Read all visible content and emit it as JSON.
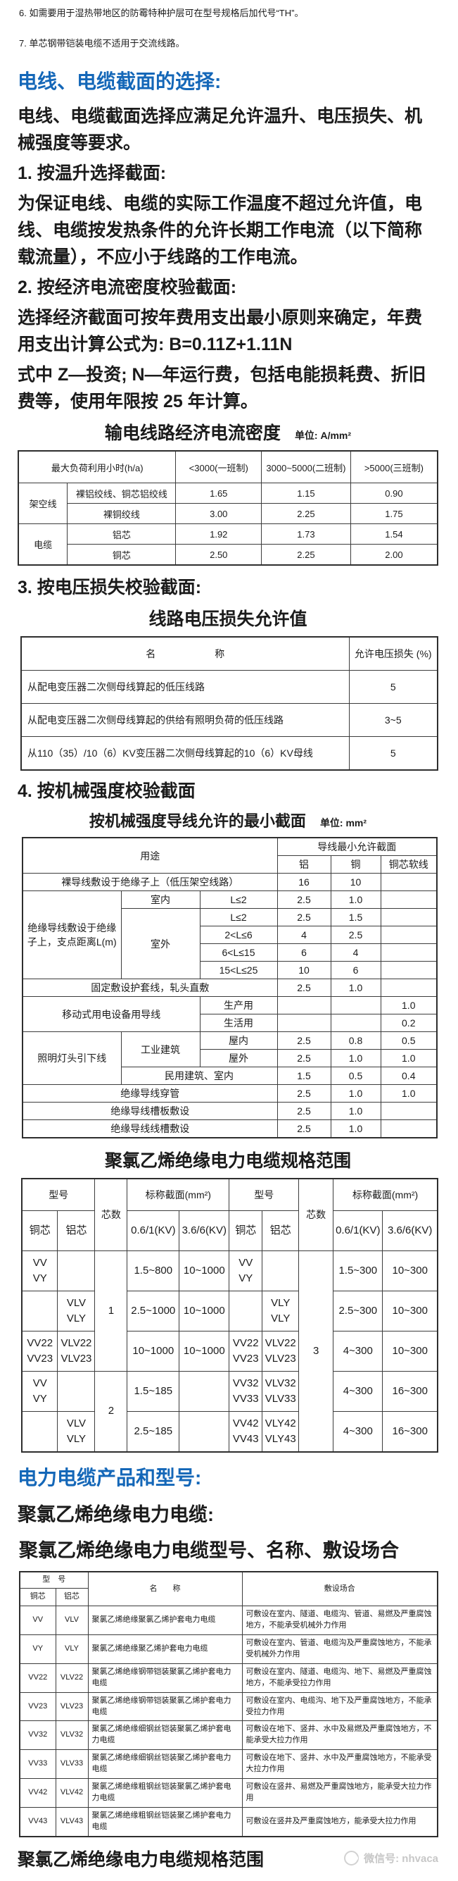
{
  "notes": [
    "6. 如需要用于湿热带地区的防霉特种护层可在型号规格后加代号“TH”。",
    "7. 单芯钢带铠装电缆不适用于交流线路。"
  ],
  "sections": {
    "selection": {
      "heading": "电线、电缆截面的选择:",
      "intro": "电线、电缆截面选择应满足允许温升、电压损失、机械强度等要求。",
      "item1_title": "1. 按温升选择截面:",
      "item1_body": "为保证电线、电缆的实际工作温度不超过允许值，电线、电缆按发热条件的允许长期工作电流（以下简称载流量），不应小于线路的工作电流。",
      "item2_title": "2. 按经济电流密度校验截面:",
      "item2_body": "选择经济截面可按年费用支出最小原则来确定，年费用支出计算公式为: B=0.11Z+1.11N",
      "item2_note": "式中 Z—投资; N—年运行费，包括电能损耗费、折旧费等，使用年限按 25 年计算。",
      "item3_title": "3. 按电压损失校验截面:",
      "item4_title": "4. 按机械强度校验截面"
    },
    "products": {
      "heading": "电力电缆产品和型号:",
      "subheading": "聚氯乙烯绝缘电力电缆:",
      "table_title": "聚氯乙烯绝缘电力电缆型号、名称、敷设场合"
    }
  },
  "table1": {
    "title": "输电线路经济电流密度",
    "unit": "单位: A/mm²",
    "cols": [
      70,
      155,
      122,
      127,
      124
    ],
    "rows": [
      [
        {
          "t": "最大负荷利用小时(h/a)",
          "cs": 2
        },
        {
          "t": "<3000(一班制)"
        },
        {
          "t": "3000~5000(二班制)"
        },
        {
          "t": ">5000(三班制)"
        }
      ],
      [
        {
          "t": "架空线",
          "rs": 2
        },
        {
          "t": "裸铝绞线、铜芯铝绞线"
        },
        {
          "t": "1.65"
        },
        {
          "t": "1.15"
        },
        {
          "t": "0.90"
        }
      ],
      [
        {
          "t": "裸铜绞线"
        },
        {
          "t": "3.00"
        },
        {
          "t": "2.25"
        },
        {
          "t": "1.75"
        }
      ],
      [
        {
          "t": "电缆",
          "rs": 2
        },
        {
          "t": "铝芯"
        },
        {
          "t": "1.92"
        },
        {
          "t": "1.73"
        },
        {
          "t": "1.54"
        }
      ],
      [
        {
          "t": "铜芯"
        },
        {
          "t": "2.50"
        },
        {
          "t": "2.25"
        },
        {
          "t": "2.00"
        }
      ]
    ]
  },
  "table2": {
    "title": "线路电压损失允许值",
    "cols": [
      466,
      126
    ],
    "rows": [
      [
        {
          "t": "名　　　　　　称"
        },
        {
          "t": "允许电压损失 (%)"
        }
      ],
      [
        {
          "t": "从配电变压器二次侧母线算起的低压线路",
          "cl": "al"
        },
        {
          "t": "5"
        }
      ],
      [
        {
          "t": "从配电变压器二次侧母线算起的供给有照明负荷的低压线路",
          "cl": "al"
        },
        {
          "t": "3~5"
        }
      ],
      [
        {
          "t": "从110（35）/10（6）KV变压器二次侧母线算起的10（6）KV母线",
          "cl": "al"
        },
        {
          "t": "5"
        }
      ]
    ]
  },
  "table3": {
    "title": "按机械强度导线允许的最小截面",
    "unit": "单位: mm²",
    "cols": [
      140,
      112,
      110,
      76,
      71,
      80
    ],
    "rows": [
      [
        {
          "t": "用途",
          "cs": 3,
          "rs": 2
        },
        {
          "t": "导线最小允许截面",
          "cs": 3
        }
      ],
      [
        {
          "t": "铝"
        },
        {
          "t": "铜"
        },
        {
          "t": "铜芯软线"
        }
      ],
      [
        {
          "t": "裸导线敷设于绝缘子上（低压架空线路）",
          "cs": 3
        },
        {
          "t": "16"
        },
        {
          "t": "10"
        },
        {
          "t": ""
        }
      ],
      [
        {
          "t": "绝缘导线敷设于绝缘子上，支点距离L(m)",
          "rs": 5
        },
        {
          "t": "室内"
        },
        {
          "t": "L≤2"
        },
        {
          "t": "2.5"
        },
        {
          "t": "1.0"
        },
        {
          "t": ""
        }
      ],
      [
        {
          "t": "室外",
          "rs": 4
        },
        {
          "t": "L≤2"
        },
        {
          "t": "2.5"
        },
        {
          "t": "1.5"
        },
        {
          "t": ""
        }
      ],
      [
        {
          "t": "2<L≤6"
        },
        {
          "t": "4"
        },
        {
          "t": "2.5"
        },
        {
          "t": ""
        }
      ],
      [
        {
          "t": "6<L≤15"
        },
        {
          "t": "6"
        },
        {
          "t": "4"
        },
        {
          "t": ""
        }
      ],
      [
        {
          "t": "15<L≤25"
        },
        {
          "t": "10"
        },
        {
          "t": "6"
        },
        {
          "t": ""
        }
      ],
      [
        {
          "t": "固定敷设护套线，轧头直敷",
          "cs": 3
        },
        {
          "t": "2.5"
        },
        {
          "t": "1.0"
        },
        {
          "t": ""
        }
      ],
      [
        {
          "t": "移动式用电设备用导线",
          "cs": 2,
          "rs": 2
        },
        {
          "t": "生产用"
        },
        {
          "t": ""
        },
        {
          "t": ""
        },
        {
          "t": "1.0"
        }
      ],
      [
        {
          "t": "生活用"
        },
        {
          "t": ""
        },
        {
          "t": ""
        },
        {
          "t": "0.2"
        }
      ],
      [
        {
          "t": "照明灯头引下线",
          "rs": 3
        },
        {
          "t": "工业建筑",
          "rs": 2
        },
        {
          "t": "屋内"
        },
        {
          "t": "2.5"
        },
        {
          "t": "0.8"
        },
        {
          "t": "0.5"
        }
      ],
      [
        {
          "t": "屋外"
        },
        {
          "t": "2.5"
        },
        {
          "t": "1.0"
        },
        {
          "t": "1.0"
        }
      ],
      [
        {
          "t": "民用建筑、室内",
          "cs": 2
        },
        {
          "t": "1.5"
        },
        {
          "t": "0.5"
        },
        {
          "t": "0.4"
        }
      ],
      [
        {
          "t": "绝缘导线穿管",
          "cs": 3
        },
        {
          "t": "2.5"
        },
        {
          "t": "1.0"
        },
        {
          "t": "1.0"
        }
      ],
      [
        {
          "t": "绝缘导线槽板敷设",
          "cs": 3
        },
        {
          "t": "2.5"
        },
        {
          "t": "1.0"
        },
        {
          "t": ""
        }
      ],
      [
        {
          "t": "绝缘导线线槽敷设",
          "cs": 3
        },
        {
          "t": "2.5"
        },
        {
          "t": "1.0"
        },
        {
          "t": ""
        }
      ]
    ]
  },
  "table4": {
    "title": "聚氯乙烯绝缘电力电缆规格范围",
    "cols": [
      51,
      53,
      46,
      74,
      71,
      47,
      52,
      49,
      69,
      78
    ],
    "rows": [
      [
        {
          "t": "型号",
          "cs": 2
        },
        {
          "t": "芯数",
          "rs": 2
        },
        {
          "t": "标称截面(mm²)",
          "cs": 2
        },
        {
          "t": "型号",
          "cs": 2
        },
        {
          "t": "芯数",
          "rs": 2
        },
        {
          "t": "标称截面(mm²)",
          "cs": 2
        }
      ],
      [
        {
          "t": "铜芯"
        },
        {
          "t": "铝芯"
        },
        {
          "t": "0.6/1(KV)"
        },
        {
          "t": "3.6/6(KV)"
        },
        {
          "t": "铜芯"
        },
        {
          "t": "铝芯"
        },
        {
          "t": "0.6/1(KV)"
        },
        {
          "t": "3.6/6(KV)"
        }
      ],
      [
        {
          "t": "VV\nVY"
        },
        {
          "t": ""
        },
        {
          "t": "1",
          "rs": 3
        },
        {
          "t": "1.5~800"
        },
        {
          "t": "10~1000"
        },
        {
          "t": "VV\nVY"
        },
        {
          "t": ""
        },
        {
          "t": "3",
          "rs": 5
        },
        {
          "t": "1.5~300"
        },
        {
          "t": "10~300"
        }
      ],
      [
        {
          "t": ""
        },
        {
          "t": "VLV\nVLY"
        },
        {
          "t": "2.5~1000"
        },
        {
          "t": "10~1000"
        },
        {
          "t": ""
        },
        {
          "t": "VLY\nVLY"
        },
        {
          "t": "2.5~300"
        },
        {
          "t": "10~300"
        }
      ],
      [
        {
          "t": "VV22\nVV23"
        },
        {
          "t": "VLV22\nVLV23"
        },
        {
          "t": "10~1000"
        },
        {
          "t": "10~1000"
        },
        {
          "t": "VV22\nVV23"
        },
        {
          "t": "VLV22\nVLV23"
        },
        {
          "t": "4~300"
        },
        {
          "t": "10~300"
        }
      ],
      [
        {
          "t": "VV\nVY"
        },
        {
          "t": ""
        },
        {
          "t": "2",
          "rs": 2
        },
        {
          "t": "1.5~185"
        },
        {
          "t": ""
        },
        {
          "t": "VV32\nVV33"
        },
        {
          "t": "VLV32\nVLV33"
        },
        {
          "t": "4~300"
        },
        {
          "t": "16~300"
        }
      ],
      [
        {
          "t": ""
        },
        {
          "t": "VLV\nVLY"
        },
        {
          "t": "2.5~185"
        },
        {
          "t": ""
        },
        {
          "t": "VV42\nVV43"
        },
        {
          "t": "VLY42\nVLY43"
        },
        {
          "t": "4~300"
        },
        {
          "t": "16~300"
        }
      ]
    ]
  },
  "table5": {
    "cols": [
      51,
      46,
      219,
      278
    ],
    "rows": [
      [
        {
          "t": "型　号",
          "cs": 2
        },
        {
          "t": "名　　称",
          "rs": 2
        },
        {
          "t": "敷设场合",
          "rs": 2
        }
      ],
      [
        {
          "t": "铜芯"
        },
        {
          "t": "铝芯"
        }
      ],
      [
        {
          "t": "VV"
        },
        {
          "t": "VLV"
        },
        {
          "t": "聚氯乙烯绝缘聚氯乙烯护套电力电缆",
          "cl": "al"
        },
        {
          "t": "可敷设在室内、隧道、电缆沟、管道、易燃及严重腐蚀地方，不能承受机械外力作用",
          "cl": "al"
        }
      ],
      [
        {
          "t": "VY"
        },
        {
          "t": "VLY"
        },
        {
          "t": "聚氯乙烯绝缘聚乙烯护套电力电缆",
          "cl": "al"
        },
        {
          "t": "可敷设在室内、管道、电缆沟及严重腐蚀地方，不能承受机械外力作用",
          "cl": "al"
        }
      ],
      [
        {
          "t": "VV22"
        },
        {
          "t": "VLV22"
        },
        {
          "t": "聚氯乙烯绝缘钢带铠装聚氯乙烯护套电力电缆",
          "cl": "al"
        },
        {
          "t": "可敷设在室内、隧道、电缆沟、地下、易燃及严重腐蚀地方，不能承受拉力作用",
          "cl": "al"
        }
      ],
      [
        {
          "t": "VV23"
        },
        {
          "t": "VLV23"
        },
        {
          "t": "聚氯乙烯绝缘钢带铠装聚氯乙烯护套电力电缆",
          "cl": "al"
        },
        {
          "t": "可敷设在室内、电缆沟、地下及严重腐蚀地方，不能承受拉力作用",
          "cl": "al"
        }
      ],
      [
        {
          "t": "VV32"
        },
        {
          "t": "VLV32"
        },
        {
          "t": "聚氯乙烯绝缘细钢丝铠装聚氯乙烯护套电力电缆",
          "cl": "al"
        },
        {
          "t": "可敷设在地下、竖井、水中及易燃及严重腐蚀地方，不能承受大拉力作用",
          "cl": "al"
        }
      ],
      [
        {
          "t": "VV33"
        },
        {
          "t": "VLV33"
        },
        {
          "t": "聚氯乙烯绝缘细钢丝铠装聚乙烯护套电力电缆",
          "cl": "al"
        },
        {
          "t": "可敷设在地下、竖井、水中及严重腐蚀地方，不能承受大拉力作用",
          "cl": "al"
        }
      ],
      [
        {
          "t": "VV42"
        },
        {
          "t": "VLV42"
        },
        {
          "t": "聚氯乙烯绝缘粗钢丝铠装聚氯乙烯护套电力电缆",
          "cl": "al"
        },
        {
          "t": "可敷设在竖井、易燃及严重腐蚀地方，能承受大拉力作用",
          "cl": "al"
        }
      ],
      [
        {
          "t": "VV43"
        },
        {
          "t": "VLV43"
        },
        {
          "t": "聚氯乙烯绝缘粗钢丝铠装聚乙烯护套电力电缆",
          "cl": "al"
        },
        {
          "t": "可敷设在竖井及严重腐蚀地方，能承受大拉力作用",
          "cl": "al"
        }
      ]
    ]
  },
  "footer": {
    "title": "聚氯乙烯绝缘电力电缆规格范围",
    "watermark": "微信号: nhvaca"
  },
  "colors": {
    "accent_blue": "#1467b8",
    "text": "#1b1b1b",
    "watermark_gray": "#c7c7c7"
  }
}
